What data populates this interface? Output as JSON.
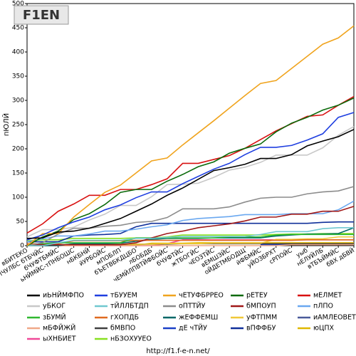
{
  "chart_data": {
    "type": "line",
    "logo": "F1EN",
    "y_label": "пЮЛЙ",
    "footer": "http://f1.f-e-n.net/",
    "categories": [
      "вБИТЕКО",
      "уБХДПЧУЛБС бТБЧЙС",
      "бЧУФТБМЙС",
      "ьНЙМЙС-тПНБОШС",
      "нБКБНЙ",
      "йУРБОЙС",
      "мПОБЛП",
      "бЪЕТВБКДЦБО",
      "лБОБДБ",
      "чЕМЙЛПВТЙФБОЙС",
      "бЧУФТЙС",
      "жТБОГЙС",
      "чЕОЗТЙС",
      "вЕМШЗЙС",
      "оЙДЕТМБОДЩ",
      "йФБМЙС",
      "уЙОЗБРХТ",
      "сРПОЙС",
      "уыб",
      "нЕЛУЙЛБ",
      "вТБЪЙМЙС",
      "бВХ дБВЙ"
    ],
    "ylim": [
      0,
      500
    ],
    "yticks": [
      0,
      50,
      100,
      150,
      200,
      250,
      300,
      350,
      400,
      450,
      500
    ],
    "grid": false,
    "series": [
      {
        "name": "иЬНЙМФПО",
        "color": "#000000",
        "values": [
          15,
          16,
          28,
          30,
          36,
          46,
          56,
          71,
          86,
          104,
          119,
          137,
          155,
          161,
          168,
          180,
          180,
          188,
          206,
          216,
          225,
          240
        ]
      },
      {
        "name": "тБУУЕМ",
        "color": "#1f3fe0",
        "values": [
          12,
          22,
          37,
          49,
          59,
          74,
          84,
          99,
          111,
          111,
          128,
          143,
          158,
          170,
          188,
          203,
          203,
          207,
          218,
          231,
          265,
          275
        ]
      },
      {
        "name": "чЕТУФБРРЕО",
        "color": "#f0a41e",
        "values": [
          0,
          25,
          25,
          59,
          85,
          110,
          125,
          150,
          175,
          181,
          208,
          233,
          258,
          284,
          310,
          335,
          341,
          366,
          391,
          416,
          429,
          454
        ]
      },
      {
        "name": "рЕТЕУ",
        "color": "#0a6a0a",
        "values": [
          0,
          18,
          30,
          54,
          66,
          85,
          110,
          116,
          116,
          133,
          147,
          163,
          173,
          191,
          201,
          210,
          235,
          253,
          265,
          280,
          290,
          305
        ]
      },
      {
        "name": "мЕЛМЕТ",
        "color": "#d81010",
        "values": [
          26,
          45,
          71,
          86,
          104,
          104,
          116,
          116,
          126,
          138,
          170,
          170,
          178,
          186,
          201,
          219,
          237,
          252,
          267,
          270,
          290,
          308
        ]
      },
      {
        "name": "уБКОГ",
        "color": "#c8c8c8",
        "values": [
          18,
          33,
          33,
          38,
          53,
          65,
          83,
          83,
          101,
          126,
          127,
          129,
          141,
          156,
          162,
          172,
          187,
          187,
          187,
          202,
          228,
          246
        ]
      },
      {
        "name": "тЙЛЛБТДП",
        "color": "#70c8d0",
        "values": [
          0,
          0,
          6,
          11,
          11,
          11,
          11,
          15,
          15,
          17,
          19,
          19,
          19,
          19,
          19,
          23,
          29,
          29,
          29,
          35,
          37,
          37
        ]
      },
      {
        "name": "оПТТЙУ",
        "color": "#8c8c8c",
        "values": [
          0,
          6,
          24,
          36,
          36,
          40,
          42,
          48,
          50,
          58,
          76,
          76,
          76,
          80,
          90,
          98,
          100,
          100,
          107,
          111,
          113,
          122
        ]
      },
      {
        "name": "бМПОУП",
        "color": "#a01818",
        "values": [
          2,
          2,
          2,
          2,
          2,
          2,
          2,
          6,
          16,
          25,
          30,
          37,
          41,
          45,
          51,
          59,
          59,
          65,
          65,
          71,
          71,
          81
        ]
      },
      {
        "name": "пЛПО",
        "color": "#6aa8f0",
        "values": [
          8,
          14,
          20,
          20,
          24,
          30,
          30,
          34,
          39,
          43,
          52,
          56,
          58,
          60,
          64,
          64,
          64,
          66,
          66,
          66,
          74,
          92
        ]
      },
      {
        "name": "зБУМЙ",
        "color": "#30b830",
        "values": [
          0,
          4,
          6,
          6,
          6,
          6,
          6,
          16,
          16,
          16,
          16,
          16,
          16,
          18,
          18,
          18,
          22,
          23,
          23,
          23,
          23,
          23
        ]
      },
      {
        "name": "гХОПДБ",
        "color": "#e06a20",
        "values": [
          4,
          4,
          4,
          10,
          10,
          10,
          10,
          11,
          11,
          11,
          11,
          11,
          11,
          11,
          11,
          11,
          11,
          11,
          12,
          12,
          12,
          12
        ]
      },
      {
        "name": "жЕФФЕМШ",
        "color": "#006868",
        "values": [
          0,
          0,
          0,
          4,
          4,
          4,
          5,
          9,
          13,
          15,
          15,
          15,
          16,
          16,
          16,
          16,
          20,
          22,
          24,
          24,
          25,
          37
        ]
      },
      {
        "name": "уФТПММ",
        "color": "#f0c838",
        "values": [
          0,
          0,
          1,
          2,
          3,
          3,
          3,
          3,
          3,
          4,
          4,
          4,
          5,
          5,
          5,
          5,
          13,
          13,
          14,
          14,
          18,
          18
        ]
      },
      {
        "name": "иАМЛЕОВЕТЗ",
        "color": "#4a5a9a",
        "values": [
          0,
          0,
          null,
          null,
          null,
          null,
          null,
          null,
          null,
          null,
          null,
          null,
          null,
          null,
          null,
          null,
          null,
          null,
          null,
          null,
          null,
          null
        ]
      },
      {
        "name": "мБФЙЖЙ",
        "color": "#f0a888",
        "values": [
          0,
          0,
          0,
          0,
          0,
          0,
          0,
          0,
          0,
          0,
          0,
          0,
          0,
          0,
          0,
          0,
          0,
          2,
          2,
          2,
          2,
          2
        ]
      },
      {
        "name": "бМВПО",
        "color": "#404040",
        "values": [
          0,
          0,
          1,
          3,
          3,
          3,
          3,
          3,
          3,
          3,
          4,
          4,
          4,
          4,
          4,
          4,
          4,
          4,
          4,
          4,
          4,
          4
        ]
      },
      {
        "name": "дЕ чТЙУ",
        "color": "#1a40c8",
        "values": [
          null,
          null,
          null,
          null,
          null,
          null,
          null,
          null,
          null,
          null,
          null,
          null,
          null,
          null,
          null,
          2,
          2,
          2,
          2,
          2,
          2,
          2
        ]
      },
      {
        "name": "вПФФБУ",
        "color": "#10309a",
        "values": [
          8,
          8,
          8,
          20,
          22,
          23,
          25,
          39,
          46,
          46,
          46,
          46,
          46,
          46,
          46,
          46,
          46,
          46,
          46,
          48,
          49,
          49
        ]
      },
      {
        "name": "юЦПХ",
        "color": "#e0b800",
        "values": [
          1,
          1,
          1,
          1,
          1,
          1,
          1,
          1,
          5,
          5,
          5,
          6,
          6,
          6,
          6,
          6,
          6,
          6,
          6,
          6,
          6,
          6
        ]
      },
      {
        "name": "ыХНБИЕТ",
        "color": "#f04898",
        "values": [
          0,
          0,
          0,
          0,
          0,
          0,
          0,
          0,
          0,
          4,
          12,
          12,
          12,
          12,
          12,
          12,
          12,
          12,
          12,
          12,
          12,
          12
        ]
      },
      {
        "name": "нБЗОХУУЕО",
        "color": "#88e020",
        "values": [
          10,
          12,
          12,
          15,
          15,
          15,
          15,
          16,
          16,
          18,
          22,
          22,
          22,
          22,
          22,
          22,
          23,
          24,
          24,
          25,
          25,
          25
        ]
      }
    ]
  }
}
